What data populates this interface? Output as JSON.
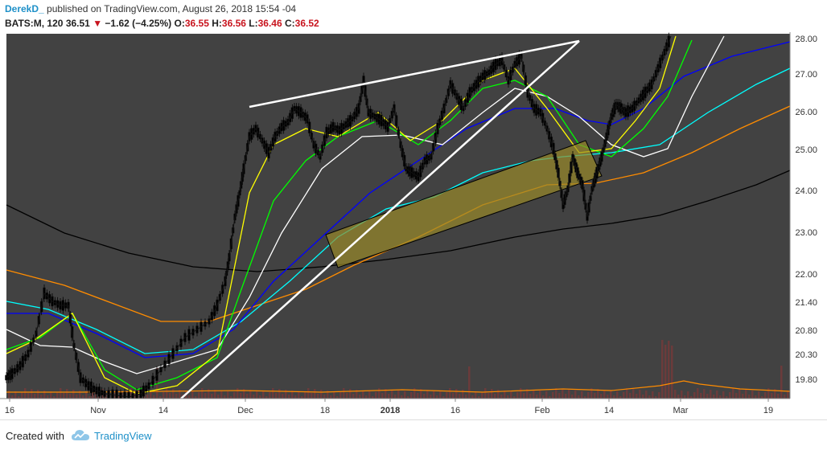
{
  "header": {
    "username": "DerekD_",
    "published_text": "published on TradingView.com, August 26, 2018 15:54 -04",
    "symbol": "BATS:M, 120",
    "last": "36.51",
    "change": "−1.62 (−4.25%)",
    "open_label": "O:",
    "open": "36.55",
    "high_label": "H:",
    "high": "36.56",
    "low_label": "L:",
    "low": "36.46",
    "close_label": "C:",
    "close": "36.52"
  },
  "footer": {
    "created_with": "Created with",
    "brand": "TradingView"
  },
  "colors": {
    "background": "#424242",
    "candle": "#000000",
    "ema_yellow": "#ffff00",
    "ema_green": "#00ff00",
    "ema_white": "#ffffff",
    "ema_blue": "#0000ff",
    "ema_cyan": "#00ffff",
    "ema_orange": "#ff8c00",
    "ema_black": "#000000",
    "trendline": "#ffffff",
    "channel_fill": "#9a8a2a",
    "volume": "#7a3a3a",
    "volume_alt": "#2a6a4a"
  },
  "chart_data": {
    "type": "line",
    "x_tick_labels": [
      "16",
      "Nov",
      "14",
      "Dec",
      "18",
      "2018",
      "16",
      "Feb",
      "14",
      "Mar",
      "19"
    ],
    "y_tick_labels": [
      "28.00",
      "27.00",
      "26.00",
      "25.00",
      "24.00",
      "23.00",
      "22.00",
      "21.40",
      "20.80",
      "20.30",
      "19.80"
    ],
    "ylim": [
      19.3,
      28.3
    ],
    "series": [
      {
        "name": "",
        "points": [
          [
            "16",
            20.3
          ],
          [
            "Nov",
            21.5
          ],
          [
            "14",
            19.5
          ],
          [
            "Dec",
            25.6
          ],
          [
            "18",
            25.3
          ],
          [
            "2018",
            24.5
          ],
          [
            "16",
            26.6
          ],
          [
            "Feb",
            24.5
          ],
          [
            "14",
            26.0
          ],
          [
            "Mar",
            28.2
          ]
        ]
      }
    ],
    "trendlines": {
      "rising": [
        [
          "14",
          19.3
        ],
        [
          "Feb",
          28.0
        ]
      ],
      "upper": [
        [
          "Dec",
          26.1
        ],
        [
          "Feb",
          28.0
        ]
      ]
    }
  }
}
